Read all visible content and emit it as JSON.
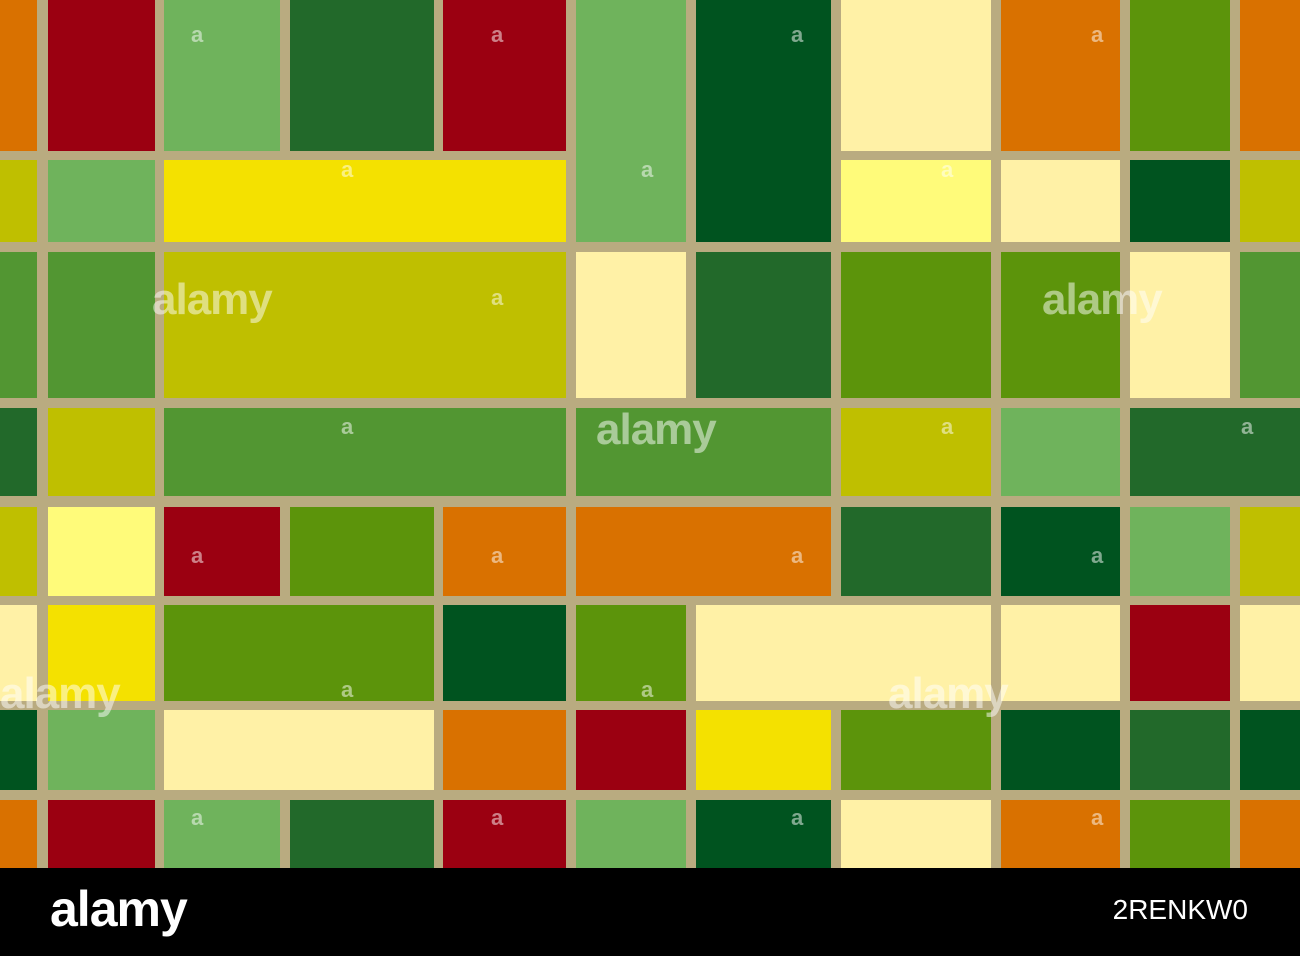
{
  "image": {
    "kind": "seamless mosaic pattern of coloured rectangles separated by beige grout lines",
    "grout_color": "#b9ab80",
    "palette": {
      "red": "#9b0011",
      "orange": "#d97100",
      "yellow": "#f4e100",
      "pale_yellow": "#fff1a6",
      "light_yellow": "#fffb7a",
      "olive": "#bfbf00",
      "grass": "#5c940b",
      "mid_green": "#529632",
      "light_green": "#6fb35c",
      "dark_green": "#22692a",
      "forest": "#00531f"
    }
  },
  "watermark": {
    "big": "alamy",
    "small": "a"
  },
  "footer": {
    "logo": "alamy",
    "image_id": "2RENKW0"
  }
}
